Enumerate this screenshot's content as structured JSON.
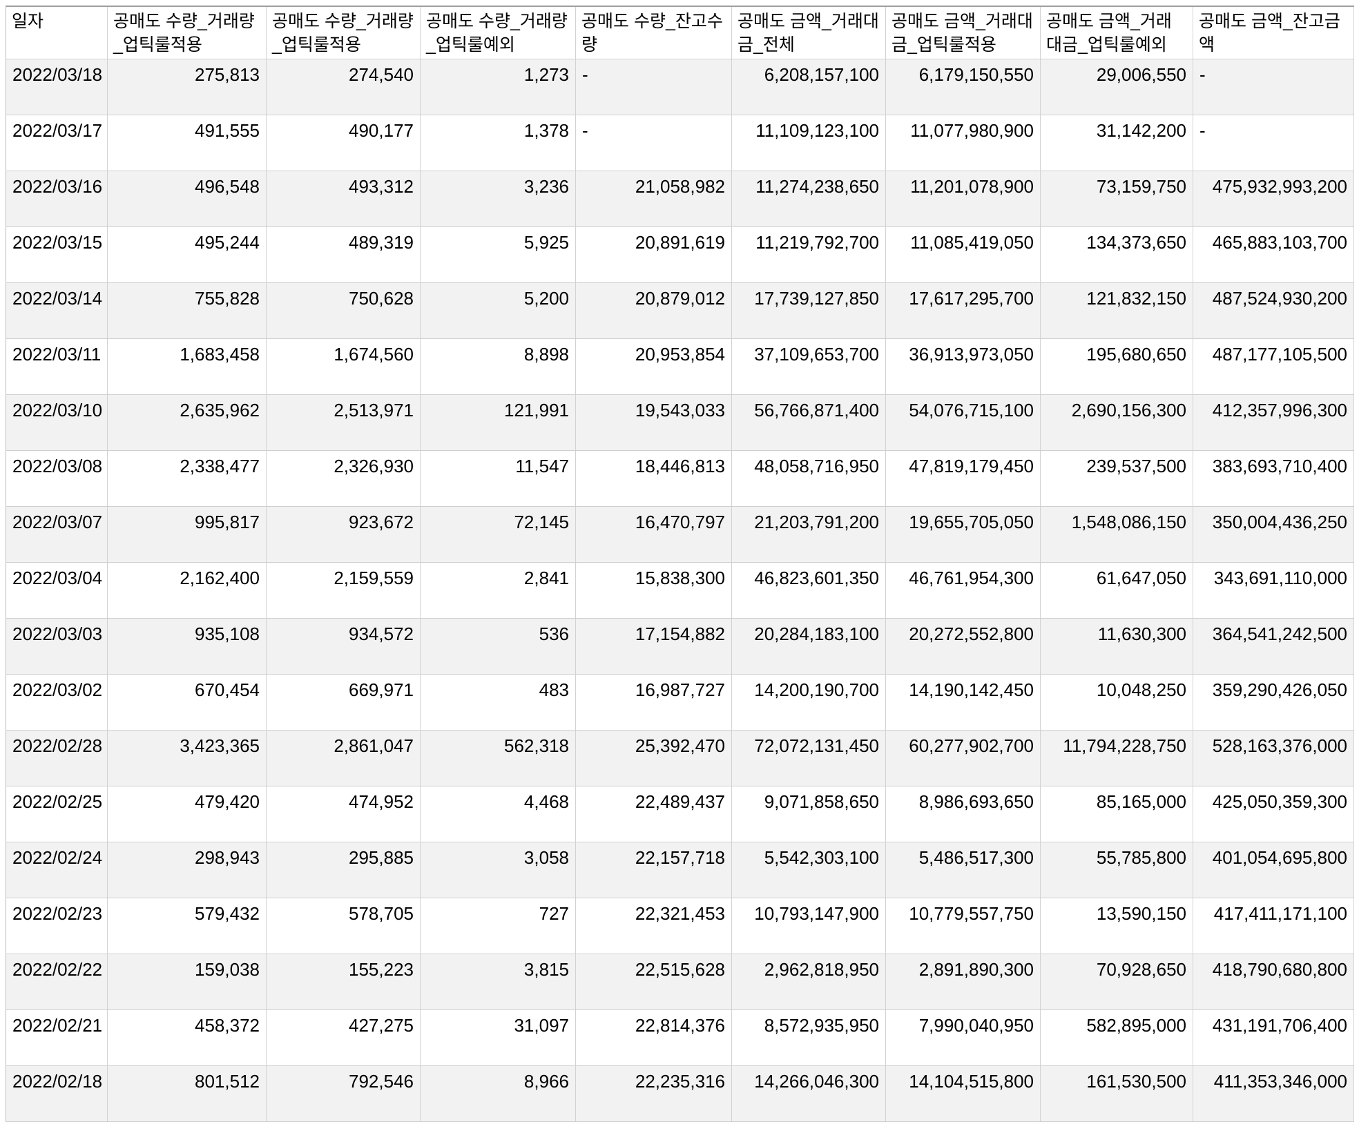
{
  "colors": {
    "stripe_row": "#f2f2f2",
    "plain_row": "#ffffff",
    "grid_border": "#d2d2d2",
    "row_border": "#cfcfcf",
    "outer_top_border": "#9e9e9e",
    "text": "#000000"
  },
  "empty_value": "-",
  "chart_data": {
    "type": "table",
    "title": "",
    "columns": [
      "일자",
      "공매도 수량_거래량_업틱룰적용",
      "공매도 수량_거래량_업틱룰적용",
      "공매도 수량_거래량_업틱룰예외",
      "공매도 수량_잔고수량",
      "공매도 금액_거래대금_전체",
      "공매도 금액_거래대금_업틱룰적용",
      "공매도 금액_거래대금_업틱룰예외",
      "공매도 금액_잔고금액"
    ],
    "rows": [
      [
        "2022/03/18",
        "275,813",
        "274,540",
        "1,273",
        "-",
        "6,208,157,100",
        "6,179,150,550",
        "29,006,550",
        "-"
      ],
      [
        "2022/03/17",
        "491,555",
        "490,177",
        "1,378",
        "-",
        "11,109,123,100",
        "11,077,980,900",
        "31,142,200",
        "-"
      ],
      [
        "2022/03/16",
        "496,548",
        "493,312",
        "3,236",
        "21,058,982",
        "11,274,238,650",
        "11,201,078,900",
        "73,159,750",
        "475,932,993,200"
      ],
      [
        "2022/03/15",
        "495,244",
        "489,319",
        "5,925",
        "20,891,619",
        "11,219,792,700",
        "11,085,419,050",
        "134,373,650",
        "465,883,103,700"
      ],
      [
        "2022/03/14",
        "755,828",
        "750,628",
        "5,200",
        "20,879,012",
        "17,739,127,850",
        "17,617,295,700",
        "121,832,150",
        "487,524,930,200"
      ],
      [
        "2022/03/11",
        "1,683,458",
        "1,674,560",
        "8,898",
        "20,953,854",
        "37,109,653,700",
        "36,913,973,050",
        "195,680,650",
        "487,177,105,500"
      ],
      [
        "2022/03/10",
        "2,635,962",
        "2,513,971",
        "121,991",
        "19,543,033",
        "56,766,871,400",
        "54,076,715,100",
        "2,690,156,300",
        "412,357,996,300"
      ],
      [
        "2022/03/08",
        "2,338,477",
        "2,326,930",
        "11,547",
        "18,446,813",
        "48,058,716,950",
        "47,819,179,450",
        "239,537,500",
        "383,693,710,400"
      ],
      [
        "2022/03/07",
        "995,817",
        "923,672",
        "72,145",
        "16,470,797",
        "21,203,791,200",
        "19,655,705,050",
        "1,548,086,150",
        "350,004,436,250"
      ],
      [
        "2022/03/04",
        "2,162,400",
        "2,159,559",
        "2,841",
        "15,838,300",
        "46,823,601,350",
        "46,761,954,300",
        "61,647,050",
        "343,691,110,000"
      ],
      [
        "2022/03/03",
        "935,108",
        "934,572",
        "536",
        "17,154,882",
        "20,284,183,100",
        "20,272,552,800",
        "11,630,300",
        "364,541,242,500"
      ],
      [
        "2022/03/02",
        "670,454",
        "669,971",
        "483",
        "16,987,727",
        "14,200,190,700",
        "14,190,142,450",
        "10,048,250",
        "359,290,426,050"
      ],
      [
        "2022/02/28",
        "3,423,365",
        "2,861,047",
        "562,318",
        "25,392,470",
        "72,072,131,450",
        "60,277,902,700",
        "11,794,228,750",
        "528,163,376,000"
      ],
      [
        "2022/02/25",
        "479,420",
        "474,952",
        "4,468",
        "22,489,437",
        "9,071,858,650",
        "8,986,693,650",
        "85,165,000",
        "425,050,359,300"
      ],
      [
        "2022/02/24",
        "298,943",
        "295,885",
        "3,058",
        "22,157,718",
        "5,542,303,100",
        "5,486,517,300",
        "55,785,800",
        "401,054,695,800"
      ],
      [
        "2022/02/23",
        "579,432",
        "578,705",
        "727",
        "22,321,453",
        "10,793,147,900",
        "10,779,557,750",
        "13,590,150",
        "417,411,171,100"
      ],
      [
        "2022/02/22",
        "159,038",
        "155,223",
        "3,815",
        "22,515,628",
        "2,962,818,950",
        "2,891,890,300",
        "70,928,650",
        "418,790,680,800"
      ],
      [
        "2022/02/21",
        "458,372",
        "427,275",
        "31,097",
        "22,814,376",
        "8,572,935,950",
        "7,990,040,950",
        "582,895,000",
        "431,191,706,400"
      ],
      [
        "2022/02/18",
        "801,512",
        "792,546",
        "8,966",
        "22,235,316",
        "14,266,046,300",
        "14,104,515,800",
        "161,530,500",
        "411,353,346,000"
      ]
    ]
  }
}
